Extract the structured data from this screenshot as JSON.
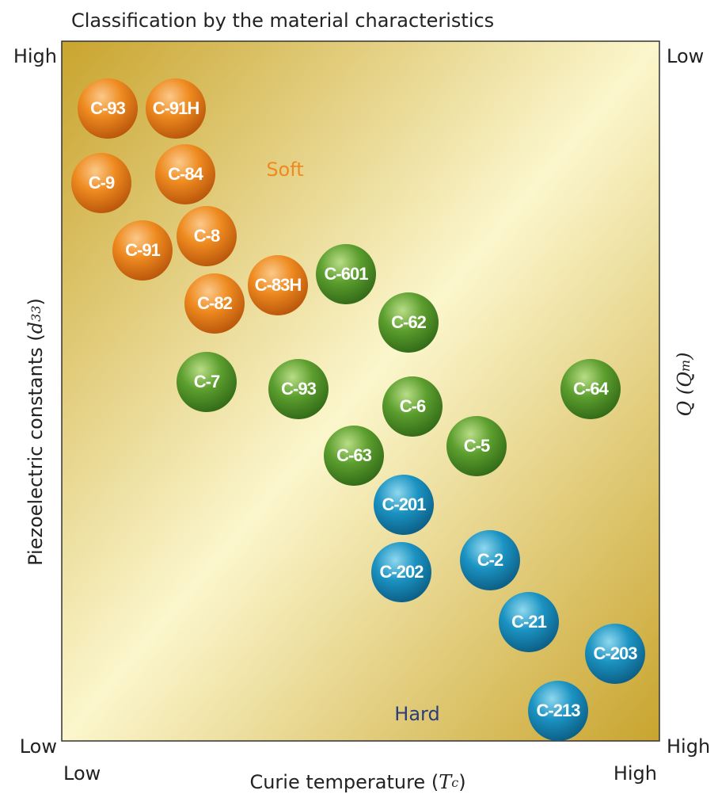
{
  "title": "Classification by the material characteristics",
  "y_axis": {
    "text": "Piezoelectric constants",
    "symbol": "d",
    "subscript": "33",
    "top": "High",
    "bottom": "Low"
  },
  "y2_axis": {
    "symbol": "Q",
    "inner_symbol": "Q",
    "inner_subscript": "m",
    "top": "Low",
    "bottom": "High"
  },
  "x_axis": {
    "text": "Curie temperature",
    "symbol": "T",
    "subscript": "c",
    "left": "Low",
    "right": "High"
  },
  "regions": {
    "soft": "Soft",
    "hard": "Hard"
  },
  "nodes": [
    {
      "label": "C-93"
    },
    {
      "label": "C-91H"
    },
    {
      "label": "C-9"
    },
    {
      "label": "C-84"
    },
    {
      "label": "C-91"
    },
    {
      "label": "C-8"
    },
    {
      "label": "C-601"
    },
    {
      "label": "C-83H"
    },
    {
      "label": "C-82"
    },
    {
      "label": "C-62"
    },
    {
      "label": "C-7"
    },
    {
      "label": "C-93"
    },
    {
      "label": "C-64"
    },
    {
      "label": "C-6"
    },
    {
      "label": "C-5"
    },
    {
      "label": "C-63"
    },
    {
      "label": "C-201"
    },
    {
      "label": "C-202"
    },
    {
      "label": "C-2"
    },
    {
      "label": "C-21"
    },
    {
      "label": "C-203"
    },
    {
      "label": "C-213"
    }
  ]
}
